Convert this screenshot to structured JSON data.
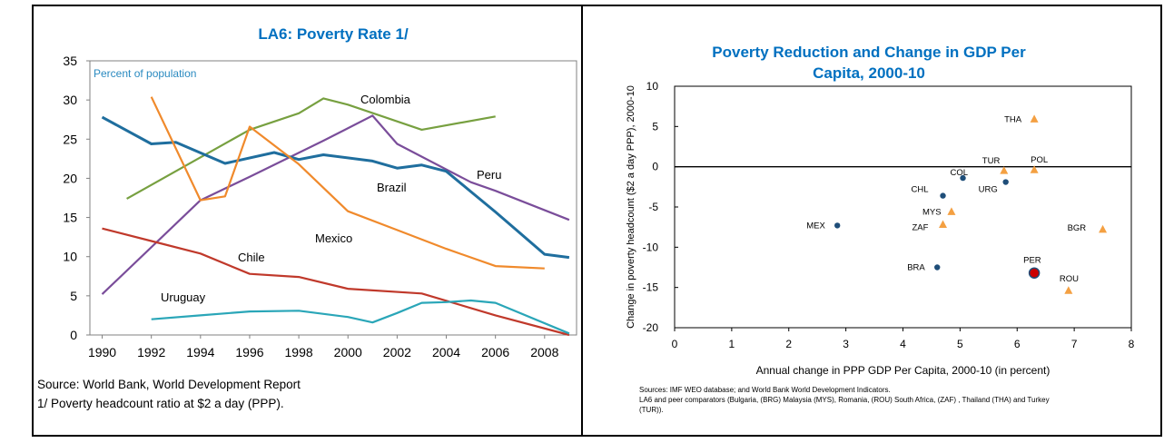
{
  "left": {
    "title": "LA6: Poverty Rate 1/",
    "inner_label": "Percent of population",
    "source": "Source: World Bank, World Development Report",
    "footnote": "1/ Poverty headcount ratio at $2 a day (PPP).",
    "series_labels": {
      "colombia": "Colombia",
      "peru": "Peru",
      "brazil": "Brazil",
      "mexico": "Mexico",
      "chile": "Chile",
      "uruguay": "Uruguay"
    }
  },
  "right": {
    "title_line1": "Poverty Reduction and Change in GDP Per",
    "title_line2": "Capita, 2000-10",
    "xlabel": "Annual change in PPP GDP Per Capita, 2000-10 (in percent)",
    "ylabel": "Change in poverty headcount ($2 a day PPP), 2000-10",
    "sources_line1": "Sources: IMF WEO database; and World Bank World Development Indicators.",
    "sources_line2": "LA6 and peer comparators (Bulgaria, (BRG) Malaysia (MYS),  Romania, (ROU)  South Africa, (ZAF) , Thailand (THA) and Turkey",
    "sources_line3": "(TUR))."
  },
  "chart_data": [
    {
      "type": "line",
      "title": "LA6: Poverty Rate 1/",
      "ylabel": "Percent of population",
      "xlim": [
        1989.5,
        2009.3
      ],
      "ylim": [
        0,
        35
      ],
      "xticks": [
        1990,
        1992,
        1994,
        1996,
        1998,
        2000,
        2002,
        2004,
        2006,
        2008
      ],
      "yticks": [
        0,
        5,
        10,
        15,
        20,
        25,
        30,
        35
      ],
      "series": [
        {
          "name": "Colombia",
          "color": "#77a040",
          "x": [
            1991,
            1996,
            1998,
            1999,
            2000,
            2003,
            2006
          ],
          "y": [
            17.4,
            26.2,
            28.3,
            30.2,
            29.4,
            26.2,
            27.9
          ]
        },
        {
          "name": "Peru",
          "color": "#7a4d9a",
          "x": [
            1990,
            1994,
            1996,
            1999,
            2001,
            2002,
            2005,
            2006,
            2009
          ],
          "y": [
            5.2,
            17.2,
            20.2,
            24.8,
            28.0,
            24.4,
            19.5,
            18.4,
            14.7
          ]
        },
        {
          "name": "Brazil",
          "color": "#1f6e9e",
          "x": [
            1990,
            1992,
            1993,
            1995,
            1997,
            1998,
            1999,
            2001,
            2002,
            2003,
            2004,
            2005,
            2006,
            2008,
            2009
          ],
          "y": [
            27.8,
            24.4,
            24.6,
            21.9,
            23.3,
            22.4,
            23.0,
            22.2,
            21.3,
            21.7,
            20.9,
            18.3,
            15.7,
            10.3,
            9.9
          ]
        },
        {
          "name": "Mexico",
          "color": "#f08a2c",
          "x": [
            1992,
            1994,
            1995,
            1996,
            1998,
            2000,
            2002,
            2004,
            2006,
            2008
          ],
          "y": [
            30.4,
            17.2,
            17.7,
            26.6,
            21.8,
            15.8,
            13.4,
            11.0,
            8.8,
            8.5
          ]
        },
        {
          "name": "Chile",
          "color": "#c0392b",
          "x": [
            1990,
            1992,
            1994,
            1996,
            1998,
            2000,
            2003,
            2006,
            2009
          ],
          "y": [
            13.6,
            12.0,
            10.4,
            7.8,
            7.4,
            5.9,
            5.3,
            2.5,
            0.0
          ]
        },
        {
          "name": "Uruguay",
          "color": "#2aa6b8",
          "x": [
            1992,
            1994,
            1996,
            1998,
            2000,
            2001,
            2002,
            2003,
            2004,
            2005,
            2006,
            2009
          ],
          "y": [
            2.0,
            2.5,
            3.0,
            3.1,
            2.3,
            1.6,
            2.8,
            4.1,
            4.2,
            4.4,
            4.1,
            0.2
          ]
        }
      ]
    },
    {
      "type": "scatter",
      "title": "Poverty Reduction and Change in GDP Per Capita, 2000-10",
      "xlabel": "Annual change in PPP GDP Per Capita, 2000-10 (in percent)",
      "ylabel": "Change in poverty headcount ($2 a day PPP), 2000-10",
      "xlim": [
        0,
        8
      ],
      "ylim": [
        -20,
        10
      ],
      "xticks": [
        0,
        1,
        2,
        3,
        4,
        5,
        6,
        7,
        8
      ],
      "yticks": [
        -20,
        -15,
        -10,
        -5,
        0,
        5,
        10
      ],
      "colors": {
        "la6": "#1f4e79",
        "peer": "#f4a042",
        "highlight": "#cc0000"
      },
      "points": [
        {
          "label": "THA",
          "x": 6.3,
          "y": 5.9,
          "group": "peer"
        },
        {
          "label": "TUR",
          "x": 5.77,
          "y": -0.5,
          "group": "peer"
        },
        {
          "label": "POL",
          "x": 6.3,
          "y": -0.4,
          "group": "peer"
        },
        {
          "label": "COL",
          "x": 5.05,
          "y": -1.4,
          "group": "la6"
        },
        {
          "label": "URG",
          "x": 5.8,
          "y": -1.9,
          "group": "la6"
        },
        {
          "label": "CHL",
          "x": 4.7,
          "y": -3.6,
          "group": "la6"
        },
        {
          "label": "MYS",
          "x": 4.85,
          "y": -5.6,
          "group": "peer"
        },
        {
          "label": "ZAF",
          "x": 4.7,
          "y": -7.2,
          "group": "peer"
        },
        {
          "label": "MEX",
          "x": 2.85,
          "y": -7.3,
          "group": "la6"
        },
        {
          "label": "BGR",
          "x": 7.5,
          "y": -7.8,
          "group": "peer"
        },
        {
          "label": "BRA",
          "x": 4.6,
          "y": -12.5,
          "group": "la6"
        },
        {
          "label": "PER",
          "x": 6.3,
          "y": -13.2,
          "group": "highlight"
        },
        {
          "label": "ROU",
          "x": 6.9,
          "y": -15.4,
          "group": "peer"
        }
      ]
    }
  ]
}
